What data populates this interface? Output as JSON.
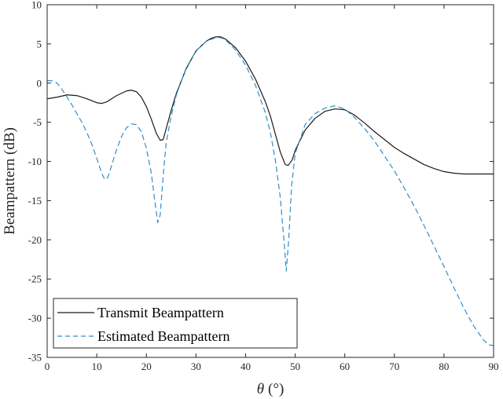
{
  "chart_data": {
    "type": "line",
    "title": "",
    "xlabel_symbol": "θ",
    "xlabel_unit": "(°)",
    "ylabel": "Beampattern (dB)",
    "xlim": [
      0,
      90
    ],
    "ylim": [
      -35,
      10
    ],
    "xticks": [
      0,
      10,
      20,
      30,
      40,
      50,
      60,
      70,
      80,
      90
    ],
    "yticks": [
      10,
      5,
      0,
      -5,
      -10,
      -15,
      -20,
      -25,
      -30,
      -35
    ],
    "grid": false,
    "legend_position": "bottom-left",
    "series": [
      {
        "name": "Transmit Beampattern",
        "color": "#1a1a1a",
        "dash": "solid",
        "points": [
          [
            0,
            -2.0
          ],
          [
            2,
            -1.8
          ],
          [
            4,
            -1.5
          ],
          [
            6,
            -1.6
          ],
          [
            8,
            -2.0
          ],
          [
            10,
            -2.5
          ],
          [
            11,
            -2.6
          ],
          [
            12,
            -2.4
          ],
          [
            14,
            -1.6
          ],
          [
            16,
            -1.0
          ],
          [
            17,
            -0.9
          ],
          [
            18,
            -1.1
          ],
          [
            19,
            -1.8
          ],
          [
            20,
            -3.0
          ],
          [
            21,
            -4.6
          ],
          [
            22,
            -6.4
          ],
          [
            22.8,
            -7.3
          ],
          [
            23.4,
            -7.2
          ],
          [
            24,
            -5.8
          ],
          [
            25,
            -3.5
          ],
          [
            26,
            -1.4
          ],
          [
            28,
            1.8
          ],
          [
            30,
            4.1
          ],
          [
            32,
            5.3
          ],
          [
            33,
            5.7
          ],
          [
            34,
            5.9
          ],
          [
            35,
            5.9
          ],
          [
            36,
            5.6
          ],
          [
            38,
            4.5
          ],
          [
            40,
            2.8
          ],
          [
            42,
            0.5
          ],
          [
            44,
            -2.4
          ],
          [
            45,
            -4.2
          ],
          [
            46,
            -6.5
          ],
          [
            47,
            -8.8
          ],
          [
            48,
            -10.4
          ],
          [
            48.6,
            -10.5
          ],
          [
            49.4,
            -9.8
          ],
          [
            50,
            -8.6
          ],
          [
            52,
            -6.0
          ],
          [
            54,
            -4.5
          ],
          [
            56,
            -3.6
          ],
          [
            58,
            -3.3
          ],
          [
            60,
            -3.4
          ],
          [
            62,
            -4.1
          ],
          [
            64,
            -5.1
          ],
          [
            66,
            -6.2
          ],
          [
            68,
            -7.2
          ],
          [
            70,
            -8.2
          ],
          [
            72,
            -9.0
          ],
          [
            74,
            -9.7
          ],
          [
            76,
            -10.4
          ],
          [
            78,
            -10.9
          ],
          [
            80,
            -11.3
          ],
          [
            82,
            -11.5
          ],
          [
            84,
            -11.6
          ],
          [
            86,
            -11.6
          ],
          [
            88,
            -11.6
          ],
          [
            90,
            -11.6
          ]
        ]
      },
      {
        "name": "Estimated Beampattern",
        "color": "#2f8fc9",
        "dash": "dashed",
        "points": [
          [
            0,
            0.3
          ],
          [
            1,
            0.3
          ],
          [
            2,
            0.0
          ],
          [
            3,
            -0.8
          ],
          [
            4,
            -1.8
          ],
          [
            5,
            -2.8
          ],
          [
            6,
            -3.9
          ],
          [
            7,
            -5.0
          ],
          [
            8,
            -6.3
          ],
          [
            9,
            -7.8
          ],
          [
            10,
            -9.6
          ],
          [
            11,
            -11.5
          ],
          [
            11.6,
            -12.3
          ],
          [
            12.2,
            -12.1
          ],
          [
            13,
            -10.5
          ],
          [
            14,
            -8.5
          ],
          [
            15,
            -6.8
          ],
          [
            16,
            -5.7
          ],
          [
            17,
            -5.2
          ],
          [
            18,
            -5.3
          ],
          [
            19,
            -6.2
          ],
          [
            20,
            -8.3
          ],
          [
            21,
            -11.5
          ],
          [
            21.8,
            -15.5
          ],
          [
            22.3,
            -17.8
          ],
          [
            22.8,
            -16.8
          ],
          [
            23.5,
            -11.0
          ],
          [
            24,
            -7.6
          ],
          [
            25,
            -4.2
          ],
          [
            26,
            -1.6
          ],
          [
            28,
            1.9
          ],
          [
            30,
            4.1
          ],
          [
            32,
            5.3
          ],
          [
            34,
            5.8
          ],
          [
            35,
            5.8
          ],
          [
            36,
            5.5
          ],
          [
            38,
            4.2
          ],
          [
            40,
            2.3
          ],
          [
            42,
            -0.3
          ],
          [
            44,
            -3.8
          ],
          [
            45,
            -6.3
          ],
          [
            46,
            -9.8
          ],
          [
            47,
            -14.6
          ],
          [
            47.8,
            -20.5
          ],
          [
            48.2,
            -24.0
          ],
          [
            48.7,
            -20.0
          ],
          [
            49.3,
            -13.0
          ],
          [
            50,
            -9.0
          ],
          [
            52,
            -5.3
          ],
          [
            54,
            -3.9
          ],
          [
            56,
            -3.2
          ],
          [
            58,
            -2.9
          ],
          [
            60,
            -3.3
          ],
          [
            62,
            -4.4
          ],
          [
            64,
            -5.8
          ],
          [
            66,
            -7.4
          ],
          [
            68,
            -9.3
          ],
          [
            70,
            -11.2
          ],
          [
            72,
            -13.4
          ],
          [
            74,
            -15.7
          ],
          [
            76,
            -18.2
          ],
          [
            78,
            -20.8
          ],
          [
            80,
            -23.4
          ],
          [
            82,
            -26.1
          ],
          [
            84,
            -28.7
          ],
          [
            86,
            -31.0
          ],
          [
            88,
            -32.8
          ],
          [
            89,
            -33.4
          ],
          [
            90,
            -33.5
          ]
        ]
      }
    ]
  }
}
